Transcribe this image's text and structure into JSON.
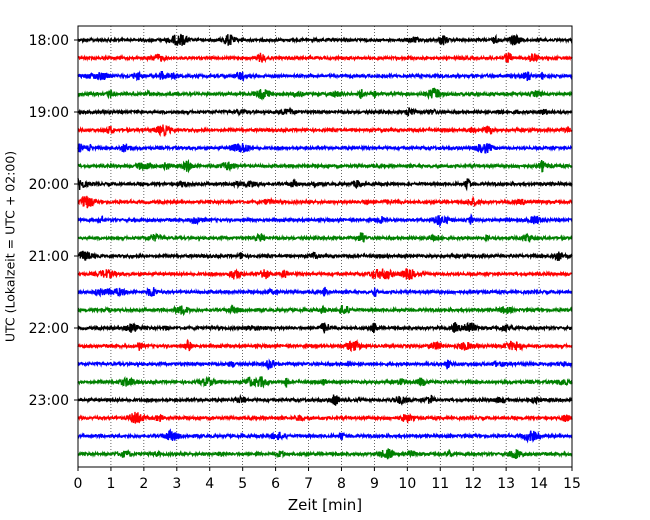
{
  "chart_data": {
    "type": "line",
    "title": "",
    "xlabel": "Zeit  [min]",
    "ylabel": "UTC (Lokalzeit = UTC + 02:00)",
    "xlim": [
      0,
      15
    ],
    "x_ticks": [
      0,
      1,
      2,
      3,
      4,
      5,
      6,
      7,
      8,
      9,
      10,
      11,
      12,
      13,
      14,
      15
    ],
    "y_tick_labels": [
      "18:00",
      "19:00",
      "20:00",
      "21:00",
      "22:00",
      "23:00"
    ],
    "rows_per_hour": 4,
    "traces": [
      {
        "start": "18:00",
        "color": "#000000"
      },
      {
        "start": "18:15",
        "color": "#ff0000"
      },
      {
        "start": "18:30",
        "color": "#0000ff"
      },
      {
        "start": "18:45",
        "color": "#008000"
      },
      {
        "start": "19:00",
        "color": "#000000"
      },
      {
        "start": "19:15",
        "color": "#ff0000"
      },
      {
        "start": "19:30",
        "color": "#0000ff"
      },
      {
        "start": "19:45",
        "color": "#008000"
      },
      {
        "start": "20:00",
        "color": "#000000"
      },
      {
        "start": "20:15",
        "color": "#ff0000"
      },
      {
        "start": "20:30",
        "color": "#0000ff"
      },
      {
        "start": "20:45",
        "color": "#008000"
      },
      {
        "start": "21:00",
        "color": "#000000"
      },
      {
        "start": "21:15",
        "color": "#ff0000"
      },
      {
        "start": "21:30",
        "color": "#0000ff"
      },
      {
        "start": "21:45",
        "color": "#008000"
      },
      {
        "start": "22:00",
        "color": "#000000"
      },
      {
        "start": "22:15",
        "color": "#ff0000"
      },
      {
        "start": "22:30",
        "color": "#0000ff"
      },
      {
        "start": "22:45",
        "color": "#008000"
      },
      {
        "start": "23:00",
        "color": "#000000"
      },
      {
        "start": "23:15",
        "color": "#ff0000"
      },
      {
        "start": "23:30",
        "color": "#0000ff"
      },
      {
        "start": "23:45",
        "color": "#008000"
      }
    ],
    "vertical_grid": "dotted",
    "legend": "none"
  }
}
